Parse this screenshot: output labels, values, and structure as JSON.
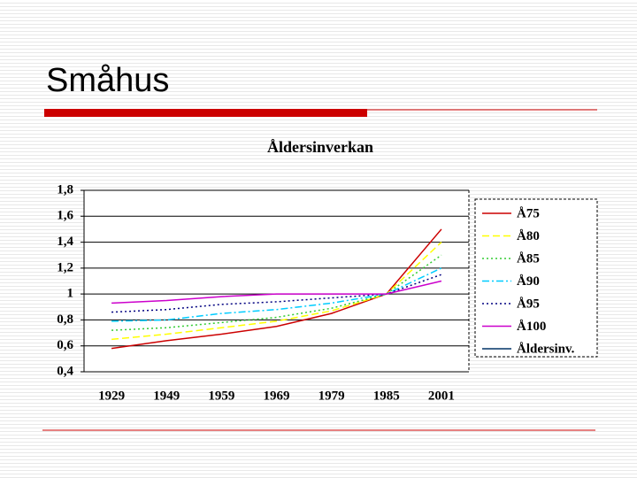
{
  "slide_title": "Småhus",
  "chart_data": {
    "type": "line",
    "title": "Åldersinverkan",
    "categories": [
      "1929",
      "1949",
      "1959",
      "1969",
      "1979",
      "1985",
      "2001"
    ],
    "ylim": [
      0.4,
      1.8
    ],
    "yticks": [
      {
        "value": 0.4,
        "label": "0,4"
      },
      {
        "value": 0.6,
        "label": "0,6"
      },
      {
        "value": 0.8,
        "label": "0,8"
      },
      1,
      {
        "value": 1.2,
        "label": "1,2"
      },
      {
        "value": 1.4,
        "label": "1,4"
      },
      {
        "value": 1.6,
        "label": "1,6"
      },
      {
        "value": 1.8,
        "label": "1,8"
      }
    ],
    "grid": true,
    "legend": "right",
    "series": [
      {
        "name": "Å75",
        "color": "#cc0000",
        "dash": "solid",
        "values": [
          0.58,
          0.64,
          0.69,
          0.75,
          0.85,
          1.0,
          1.5
        ]
      },
      {
        "name": "Å80",
        "color": "#ffff00",
        "dash": "dashed",
        "values": [
          0.65,
          0.69,
          0.74,
          0.79,
          0.87,
          1.0,
          1.4
        ]
      },
      {
        "name": "Å85",
        "color": "#33cc33",
        "dash": "dotted",
        "values": [
          0.72,
          0.74,
          0.78,
          0.82,
          0.89,
          1.0,
          1.3
        ]
      },
      {
        "name": "Å90",
        "color": "#00ccff",
        "dash": "dashdot",
        "values": [
          0.79,
          0.8,
          0.85,
          0.88,
          0.93,
          1.0,
          1.2
        ]
      },
      {
        "name": "Å95",
        "color": "#000080",
        "dash": "dotted",
        "values": [
          0.86,
          0.88,
          0.92,
          0.94,
          0.97,
          1.0,
          1.15
        ]
      },
      {
        "name": "Å100",
        "color": "#cc00cc",
        "dash": "solid",
        "values": [
          0.93,
          0.95,
          0.98,
          1.0,
          1.0,
          1.0,
          1.1
        ]
      },
      {
        "name": "Åldersinv.",
        "color": "#003366",
        "dash": "solid",
        "values": [
          null,
          null,
          null,
          null,
          null,
          null,
          null
        ]
      }
    ]
  }
}
